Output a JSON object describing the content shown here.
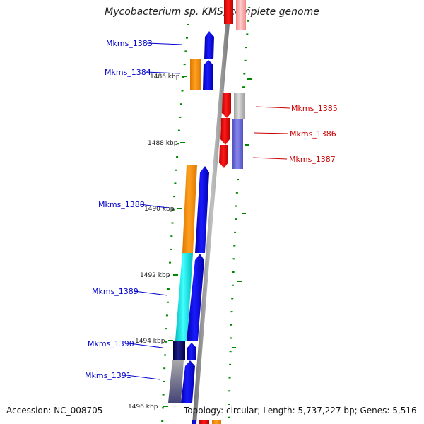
{
  "title": "Mycobacterium sp. KMS, complete genome",
  "footer": {
    "accession": "Accession: NC_008705",
    "summary": "Topology: circular; Length: 5,737,227 bp; Genes: 5,516"
  },
  "ticks": [
    {
      "label": "1486 kbp"
    },
    {
      "label": "1488 kbp"
    },
    {
      "label": "1490 kbp"
    },
    {
      "label": "1492 kbp"
    },
    {
      "label": "1494 kbp"
    },
    {
      "label": "1496 kbp"
    }
  ],
  "genes": [
    {
      "name": "Mkms_1383",
      "strand": "left",
      "color": "#0000cc"
    },
    {
      "name": "Mkms_1384",
      "strand": "left",
      "color": "#0000cc"
    },
    {
      "name": "Mkms_1385",
      "strand": "right",
      "color": "#cc0000"
    },
    {
      "name": "Mkms_1386",
      "strand": "right",
      "color": "#cc0000"
    },
    {
      "name": "Mkms_1387",
      "strand": "right",
      "color": "#cc0000"
    },
    {
      "name": "Mkms_1388",
      "strand": "left",
      "color": "#0000cc"
    },
    {
      "name": "Mkms_1389",
      "strand": "left",
      "color": "#0000cc"
    },
    {
      "name": "Mkms_1390",
      "strand": "left",
      "color": "#0000cc"
    },
    {
      "name": "Mkms_1391",
      "strand": "left",
      "color": "#0000cc"
    }
  ],
  "colors": {
    "backbone": "#909090",
    "forward_gene": "#0000ee",
    "reverse_gene": "#ee0000",
    "cog_orange": "#ff9900",
    "cog_cyan": "#00ffff",
    "cog_gray": "#c8c8c8",
    "cog_lavender": "#7070d8",
    "cog_navy": "#000066",
    "tick_green": "#008800"
  }
}
